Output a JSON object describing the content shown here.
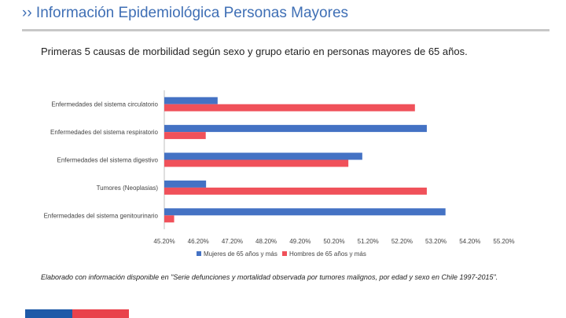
{
  "header": {
    "title": "›› Información Epidemiológica Personas Mayores"
  },
  "subtitle": "Primeras 5 causas de morbilidad según sexo y grupo etario en personas mayores de 65 años.",
  "note": "Elaborado con información disponible en \"Serie defunciones y mortalidad observada por tumores malignos, por edad y sexo en Chile 1997-2015\".",
  "colors": {
    "accent": "#3f6fb5",
    "series_women": "#4472c4",
    "series_men": "#f0515a",
    "bar_blue": "#1e5aa8",
    "bar_red": "#e9424b"
  },
  "chart_data": {
    "type": "bar",
    "orientation": "horizontal",
    "title": "",
    "categories": [
      "Enfermedades del sistema circulatorio",
      "Enfermedades del sistema respiratorio",
      "Enfermedades del sistema digestivo",
      "Tumores (Neoplasias)",
      "Enfermedades del sistema genitourinario"
    ],
    "series": [
      {
        "name": "Mujeres de 65 años y más",
        "values": [
          46.77,
          52.93,
          51.03,
          46.43,
          53.48
        ]
      },
      {
        "name": "Hombres de 65 años y más",
        "values": [
          52.58,
          46.42,
          50.62,
          52.93,
          45.49
        ]
      }
    ],
    "xlim": [
      45.2,
      55.2
    ],
    "xticks": [
      "45.20%",
      "46.20%",
      "47.20%",
      "48.20%",
      "49.20%",
      "50.20%",
      "51.20%",
      "52.20%",
      "53.20%",
      "54.20%",
      "55.20%"
    ],
    "xtick_values": [
      45.2,
      46.2,
      47.2,
      48.2,
      49.2,
      50.2,
      51.2,
      52.2,
      53.2,
      54.2,
      55.2
    ],
    "legend_position": "bottom",
    "grid": false
  }
}
